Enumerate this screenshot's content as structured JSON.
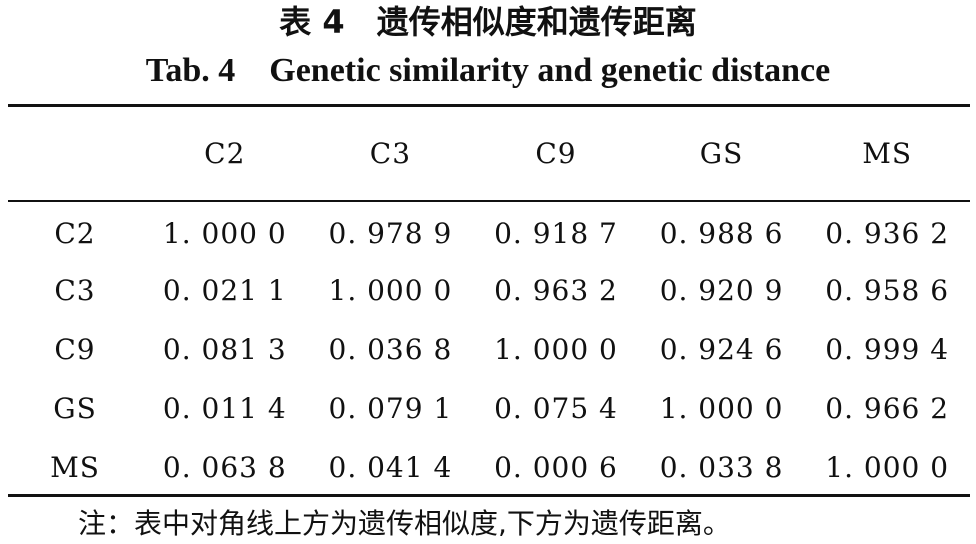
{
  "title_cn": "表 4　遗传相似度和遗传距离",
  "title_en": "Tab. 4　Genetic similarity and genetic distance",
  "columns": [
    "",
    "C2",
    "C3",
    "C9",
    "GS",
    "MS"
  ],
  "rows": [
    {
      "label": "C2",
      "cells": [
        "1. 000 0",
        "0. 978 9",
        "0. 918 7",
        "0. 988 6",
        "0. 936 2"
      ]
    },
    {
      "label": "C3",
      "cells": [
        "0. 021 1",
        "1. 000 0",
        "0. 963 2",
        "0. 920 9",
        "0. 958 6"
      ]
    },
    {
      "label": "C9",
      "cells": [
        "0. 081 3",
        "0. 036 8",
        "1. 000 0",
        "0. 924 6",
        "0. 999 4"
      ]
    },
    {
      "label": "GS",
      "cells": [
        "0. 011 4",
        "0. 079 1",
        "0. 075 4",
        "1. 000 0",
        "0. 966 2"
      ]
    },
    {
      "label": "MS",
      "cells": [
        "0. 063 8",
        "0. 041 4",
        "0. 000 6",
        "0. 033 8",
        "1. 000 0"
      ]
    }
  ],
  "note": "注：表中对角线上方为遗传相似度,下方为遗传距离。"
}
